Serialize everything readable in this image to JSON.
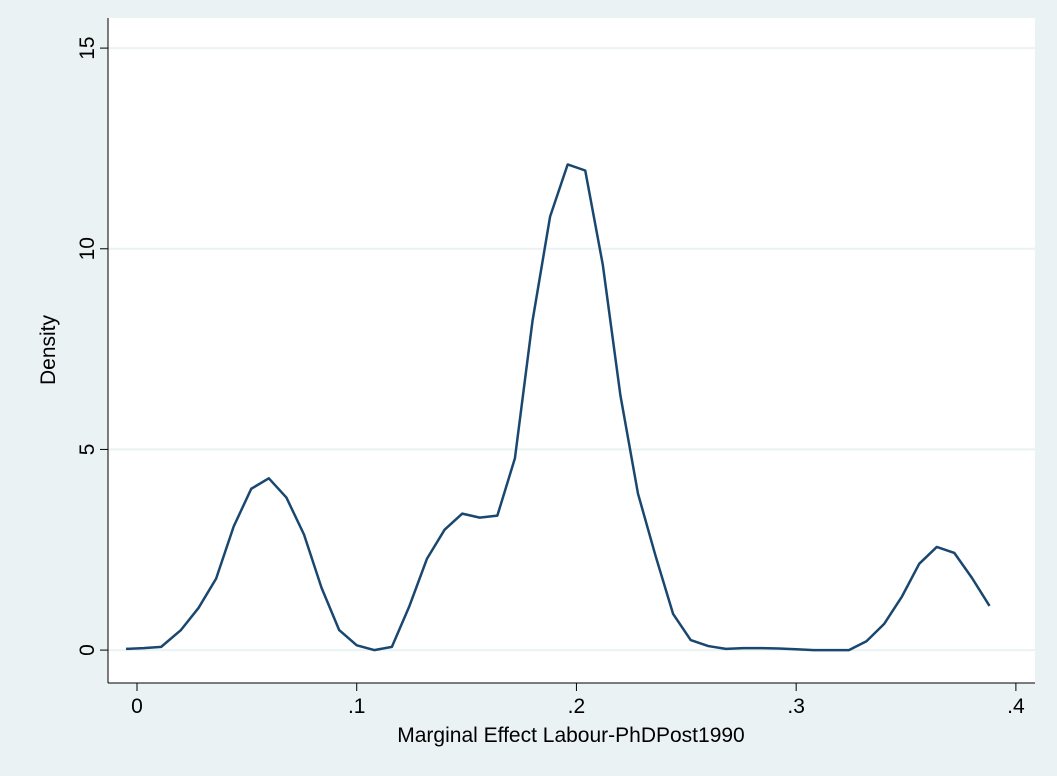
{
  "chart_data": {
    "type": "line",
    "xlabel": "Marginal Effect Labour-PhDPost1990",
    "ylabel": "Density",
    "x": [
      -0.005,
      0.003,
      0.011,
      0.02,
      0.028,
      0.036,
      0.044,
      0.052,
      0.06,
      0.068,
      0.076,
      0.084,
      0.092,
      0.1,
      0.108,
      0.116,
      0.124,
      0.132,
      0.14,
      0.148,
      0.156,
      0.164,
      0.172,
      0.18,
      0.188,
      0.196,
      0.204,
      0.212,
      0.22,
      0.228,
      0.236,
      0.244,
      0.252,
      0.26,
      0.268,
      0.276,
      0.284,
      0.292,
      0.3,
      0.308,
      0.316,
      0.324,
      0.332,
      0.34,
      0.348,
      0.356,
      0.364,
      0.372,
      0.38,
      0.388
    ],
    "series": [
      {
        "name": "Density",
        "color": "#1a476f",
        "values": [
          0.03,
          0.05,
          0.08,
          0.5,
          1.05,
          1.78,
          3.08,
          4.02,
          4.28,
          3.8,
          2.88,
          1.55,
          0.5,
          0.12,
          0.0,
          0.08,
          1.1,
          2.28,
          3.0,
          3.4,
          3.3,
          3.35,
          4.78,
          8.2,
          10.8,
          12.1,
          11.95,
          9.6,
          6.35,
          3.9,
          2.35,
          0.9,
          0.25,
          0.1,
          0.03,
          0.05,
          0.05,
          0.04,
          0.02,
          0.0,
          0.0,
          0.0,
          0.22,
          0.65,
          1.32,
          2.15,
          2.57,
          2.42,
          1.8,
          1.1
        ]
      }
    ],
    "xlim": [
      -0.0132,
      0.4087
    ],
    "ylim": [
      -0.82,
      15.75
    ],
    "xticks": [
      0,
      {
        "value": 0.1,
        "label": ".1"
      },
      {
        "value": 0.2,
        "label": ".2"
      },
      {
        "value": 0.3,
        "label": ".3"
      },
      {
        "value": 0.4,
        "label": ".4"
      }
    ],
    "yticks": [
      0,
      5,
      10,
      15
    ],
    "grid": true
  }
}
